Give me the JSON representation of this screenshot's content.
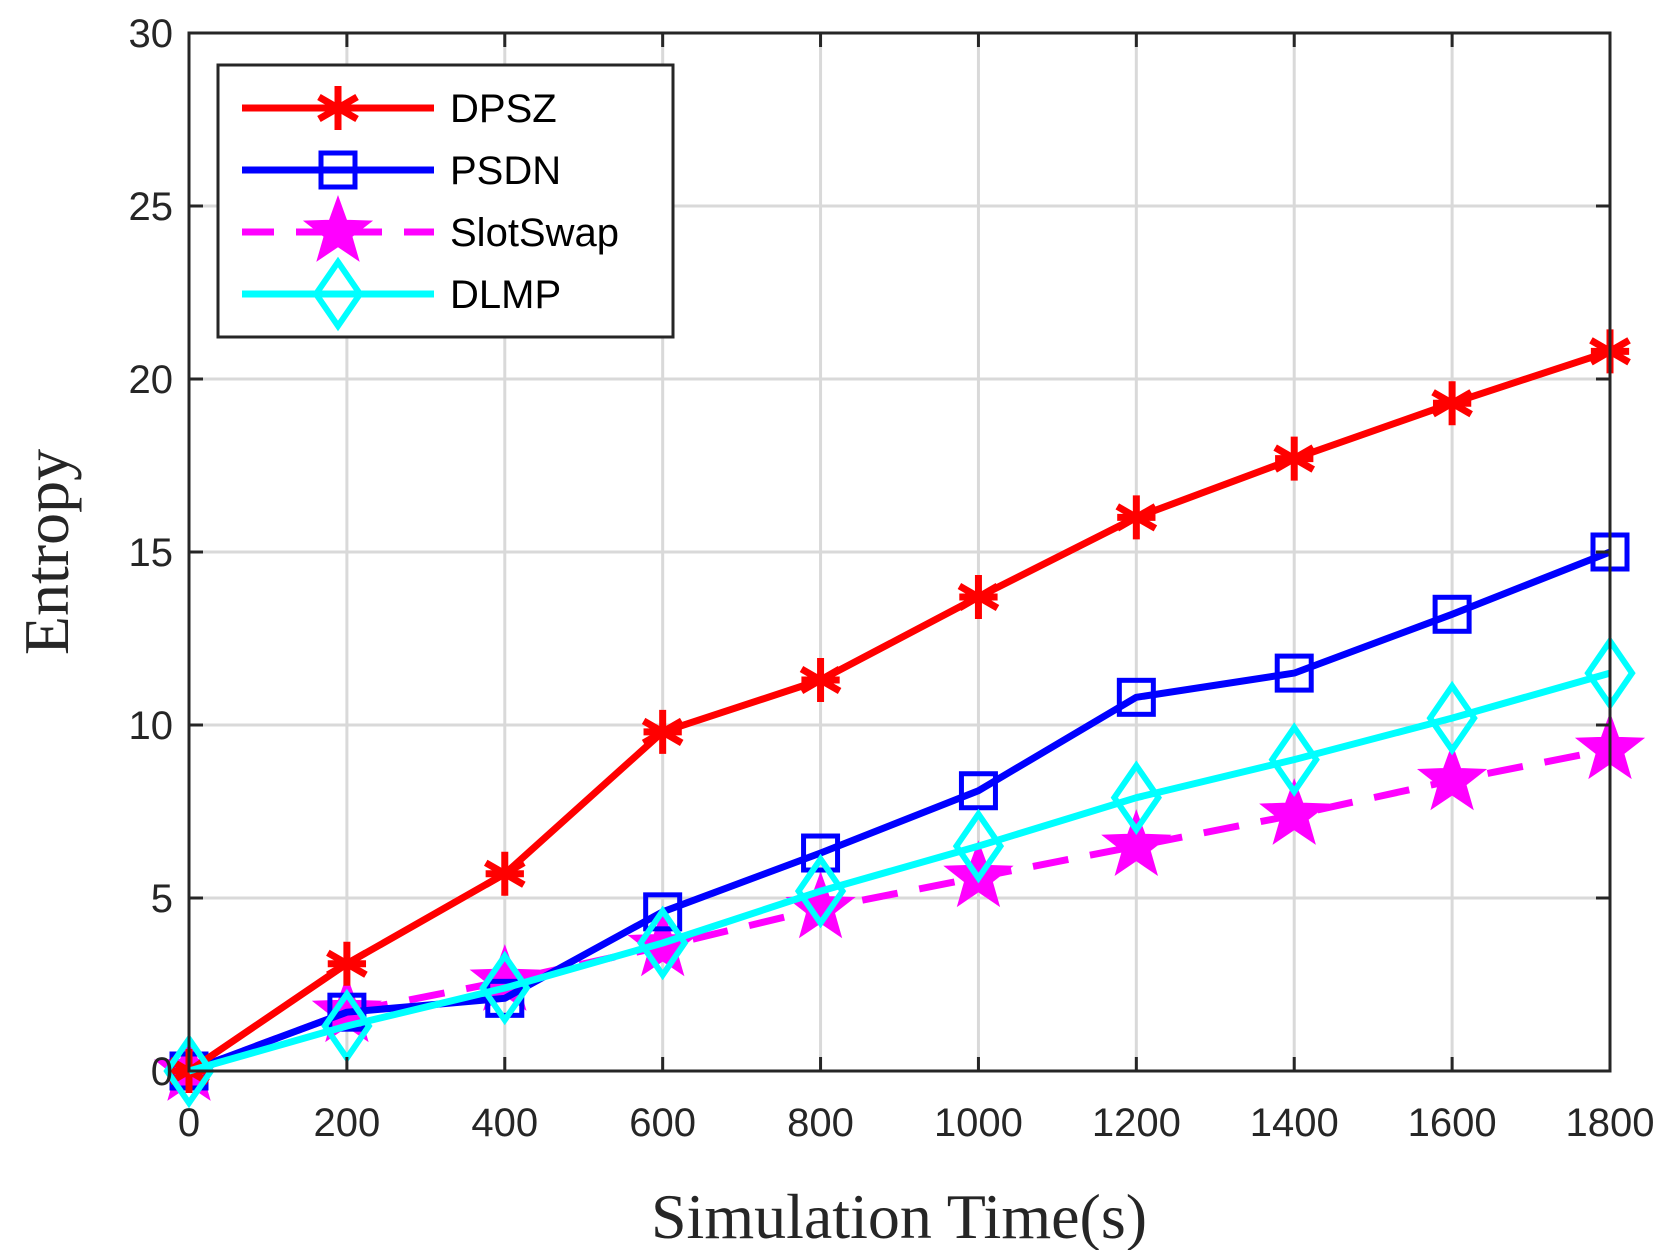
{
  "chart_data": {
    "type": "line",
    "xlabel": "Simulation Time(s)",
    "ylabel": "Entropy",
    "xlim": [
      0,
      1800
    ],
    "ylim": [
      0,
      30
    ],
    "x_ticks": [
      0,
      200,
      400,
      600,
      800,
      1000,
      1200,
      1400,
      1600,
      1800
    ],
    "y_ticks": [
      0,
      5,
      10,
      15,
      20,
      25,
      30
    ],
    "grid": true,
    "legend_position": "top-left",
    "x": [
      0,
      200,
      400,
      600,
      800,
      1000,
      1200,
      1400,
      1600,
      1800
    ],
    "series": [
      {
        "name": "DPSZ",
        "color": "#ff0000",
        "marker": "asterisk",
        "line_style": "solid",
        "values": [
          0,
          3.1,
          5.7,
          9.8,
          11.3,
          13.7,
          16.0,
          17.7,
          19.3,
          20.8
        ]
      },
      {
        "name": "PSDN",
        "color": "#0000ff",
        "marker": "square",
        "line_style": "solid",
        "values": [
          0,
          1.7,
          2.1,
          4.6,
          6.3,
          8.1,
          10.8,
          11.5,
          13.2,
          15.0
        ]
      },
      {
        "name": "SlotSwap",
        "color": "#ff00ff",
        "marker": "star",
        "line_style": "dashed",
        "values": [
          0,
          1.7,
          2.6,
          3.6,
          4.7,
          5.6,
          6.5,
          7.4,
          8.4,
          9.3
        ]
      },
      {
        "name": "DLMP",
        "color": "#00ffff",
        "marker": "diamond",
        "line_style": "solid",
        "values": [
          0,
          1.3,
          2.4,
          3.7,
          5.2,
          6.5,
          7.9,
          9.0,
          10.2,
          11.5
        ]
      }
    ]
  }
}
